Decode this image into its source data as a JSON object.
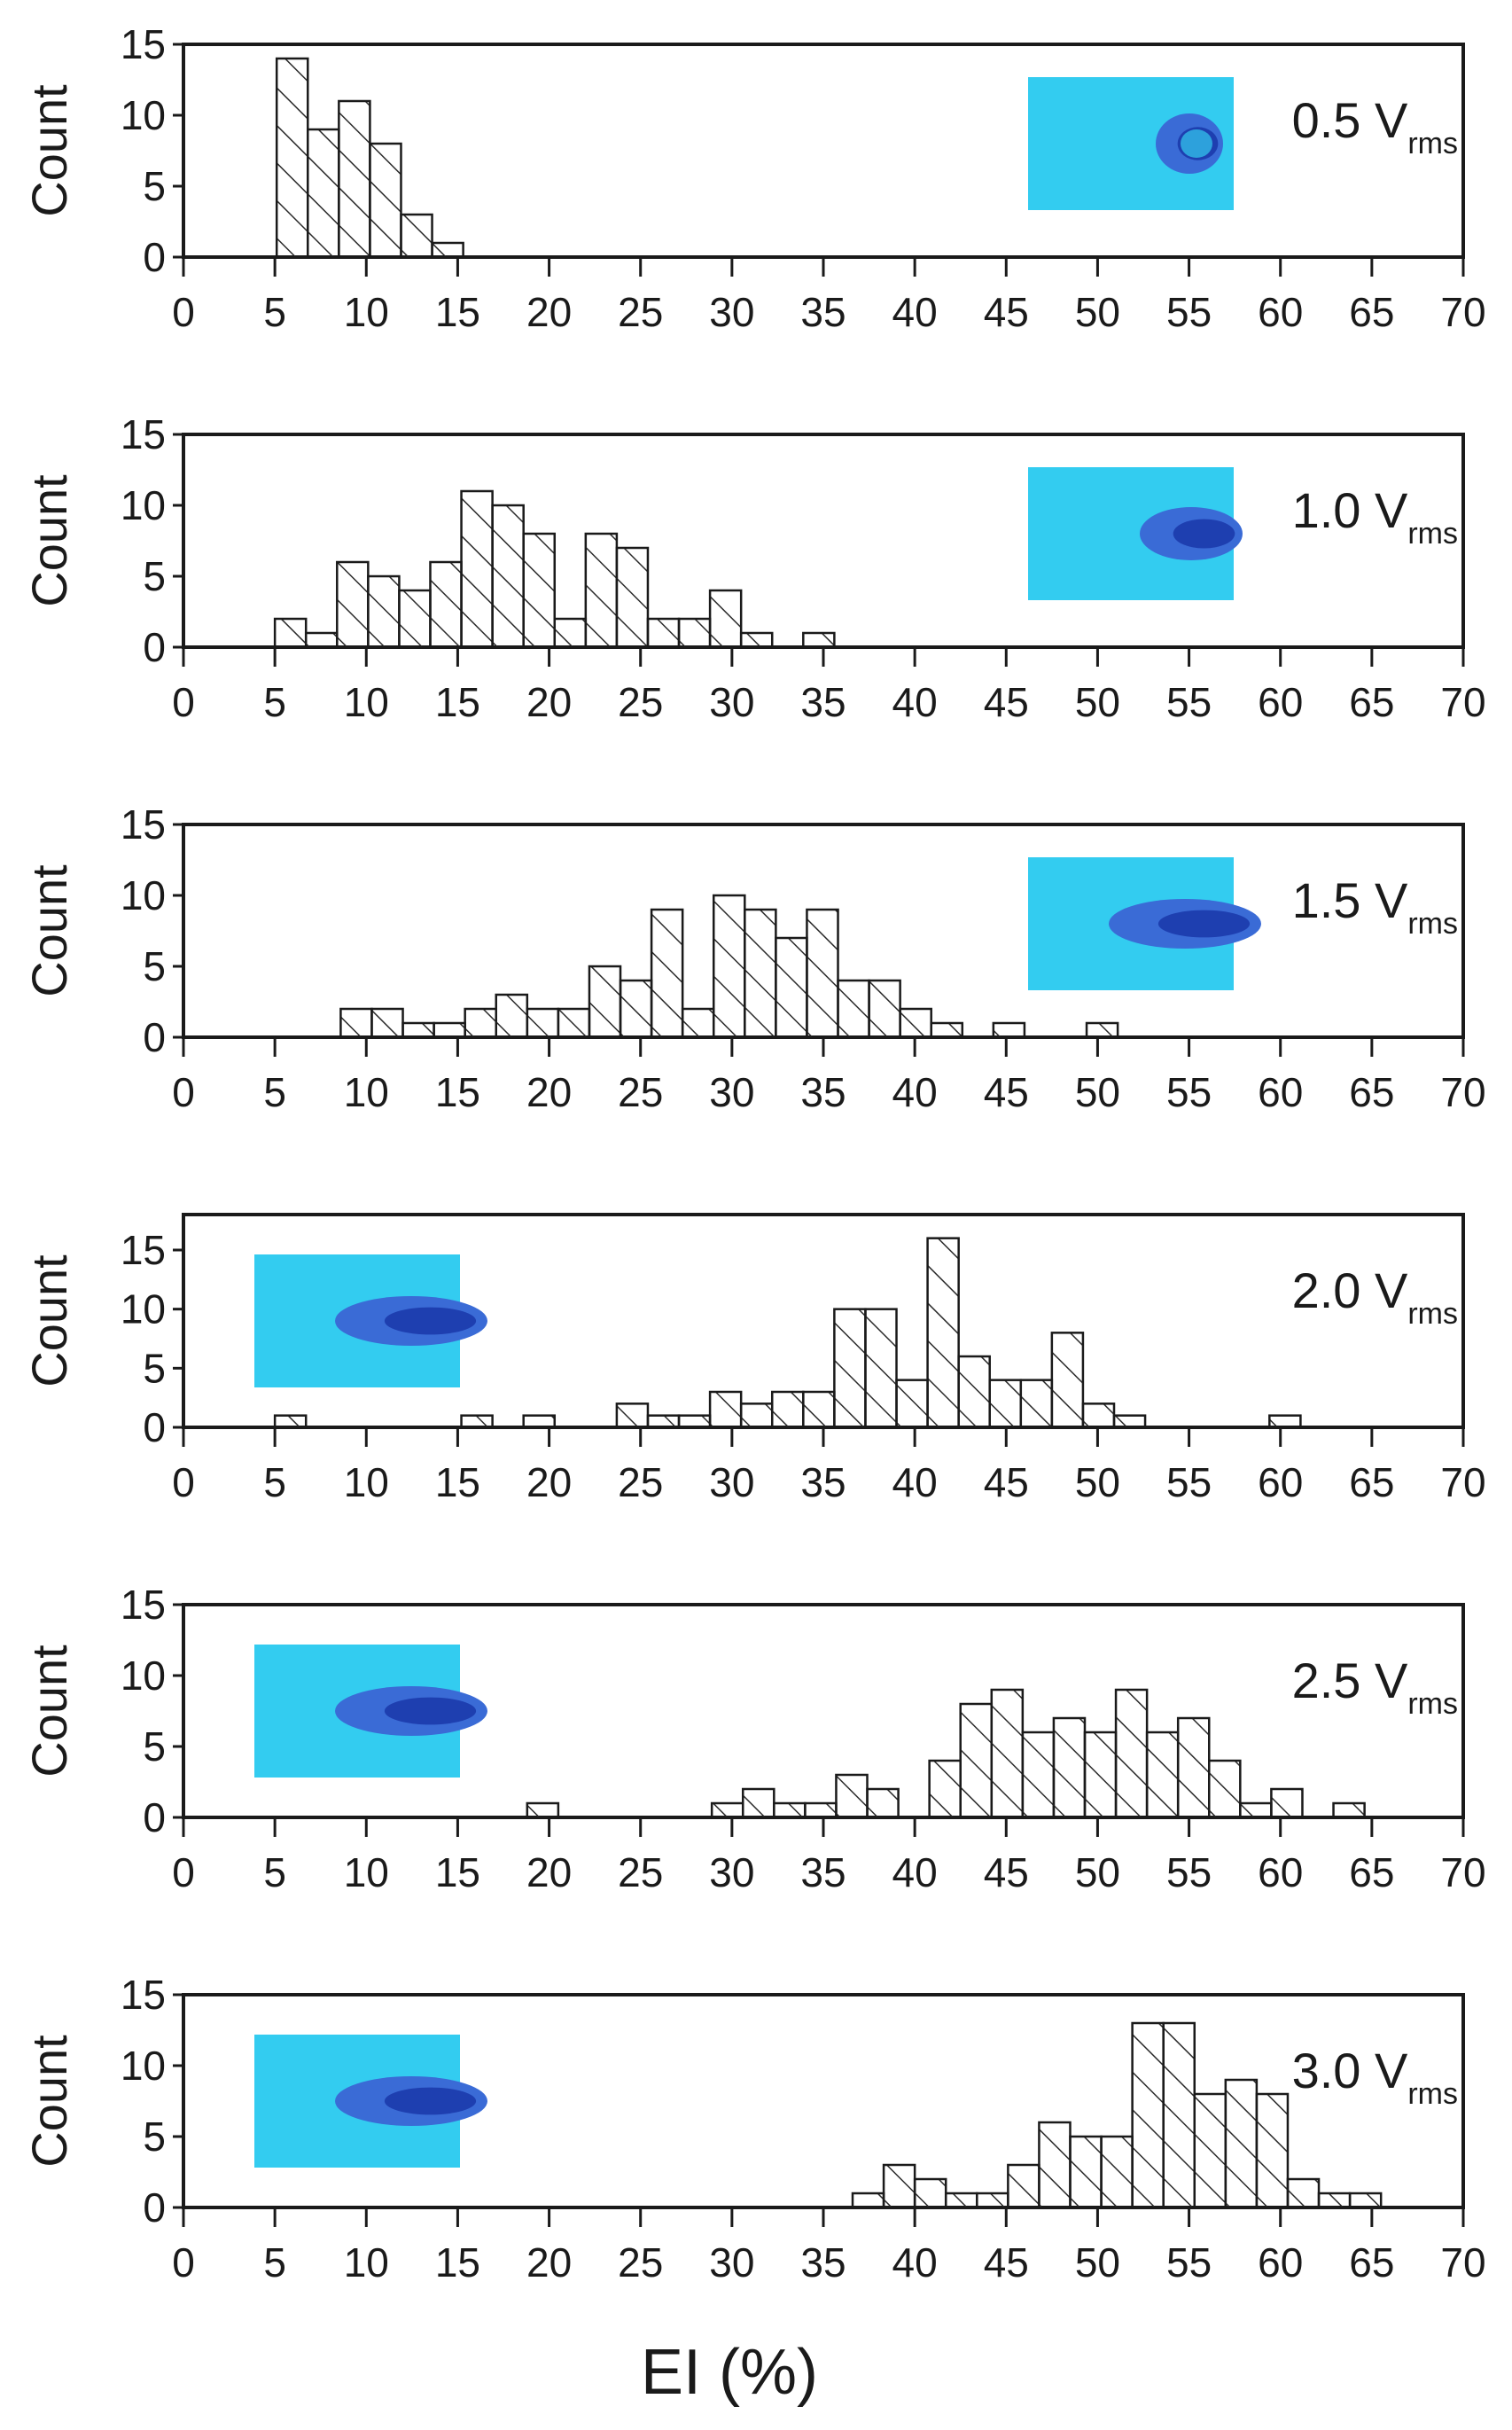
{
  "chart_data": {
    "type": "bar",
    "xlabel": "EI (%)",
    "xlim": [
      0,
      70
    ],
    "x_ticks": [
      "0",
      "5",
      "10",
      "15",
      "20",
      "25",
      "30",
      "35",
      "40",
      "45",
      "50",
      "55",
      "60",
      "65",
      "70"
    ],
    "bin_width": 1.7,
    "colors": {
      "fill": "#ffffff",
      "stroke": "#1a1a1a",
      "hatch": "#2a2a2a",
      "inset_bg": "#33ccf0",
      "inset_jet_outer": "#3a6bd6",
      "inset_jet_inner": "#1e3fb0"
    },
    "panels": [
      {
        "label_main": "0.5 V",
        "label_sub": "rms",
        "ylabel": "Count",
        "ylim": [
          0,
          15
        ],
        "y_ticks": [
          "0",
          "5",
          "10",
          "15"
        ],
        "inset": {
          "side": "right",
          "jet": "short"
        },
        "bins": [
          {
            "x": 5.1,
            "count": 14
          },
          {
            "x": 6.8,
            "count": 9
          },
          {
            "x": 8.5,
            "count": 11
          },
          {
            "x": 10.2,
            "count": 8
          },
          {
            "x": 11.9,
            "count": 3
          },
          {
            "x": 13.6,
            "count": 1
          }
        ]
      },
      {
        "label_main": "1.0 V",
        "label_sub": "rms",
        "ylabel": "Count",
        "ylim": [
          0,
          15
        ],
        "y_ticks": [
          "0",
          "5",
          "10",
          "15"
        ],
        "inset": {
          "side": "right",
          "jet": "medium"
        },
        "bins": [
          {
            "x": 5.0,
            "count": 2
          },
          {
            "x": 6.7,
            "count": 1
          },
          {
            "x": 8.4,
            "count": 6
          },
          {
            "x": 10.1,
            "count": 5
          },
          {
            "x": 11.8,
            "count": 4
          },
          {
            "x": 13.5,
            "count": 6
          },
          {
            "x": 15.2,
            "count": 11
          },
          {
            "x": 16.9,
            "count": 10
          },
          {
            "x": 18.6,
            "count": 8
          },
          {
            "x": 20.3,
            "count": 2
          },
          {
            "x": 22.0,
            "count": 8
          },
          {
            "x": 23.7,
            "count": 7
          },
          {
            "x": 25.4,
            "count": 2
          },
          {
            "x": 27.1,
            "count": 2
          },
          {
            "x": 28.8,
            "count": 4
          },
          {
            "x": 30.5,
            "count": 1
          },
          {
            "x": 33.9,
            "count": 1
          }
        ]
      },
      {
        "label_main": "1.5 V",
        "label_sub": "rms",
        "ylabel": "Count",
        "ylim": [
          0,
          15
        ],
        "y_ticks": [
          "0",
          "5",
          "10",
          "15"
        ],
        "inset": {
          "side": "right",
          "jet": "long"
        },
        "bins": [
          {
            "x": 8.6,
            "count": 2
          },
          {
            "x": 10.3,
            "count": 2
          },
          {
            "x": 12.0,
            "count": 1
          },
          {
            "x": 13.7,
            "count": 1
          },
          {
            "x": 15.4,
            "count": 2
          },
          {
            "x": 17.1,
            "count": 3
          },
          {
            "x": 18.8,
            "count": 2
          },
          {
            "x": 20.5,
            "count": 2
          },
          {
            "x": 22.2,
            "count": 5
          },
          {
            "x": 23.9,
            "count": 4
          },
          {
            "x": 25.6,
            "count": 9
          },
          {
            "x": 27.3,
            "count": 2
          },
          {
            "x": 29.0,
            "count": 10
          },
          {
            "x": 30.7,
            "count": 9
          },
          {
            "x": 32.4,
            "count": 7
          },
          {
            "x": 34.1,
            "count": 9
          },
          {
            "x": 35.8,
            "count": 4
          },
          {
            "x": 37.5,
            "count": 4
          },
          {
            "x": 39.2,
            "count": 2
          },
          {
            "x": 40.9,
            "count": 1
          },
          {
            "x": 44.3,
            "count": 1
          },
          {
            "x": 49.4,
            "count": 1
          }
        ]
      },
      {
        "label_main": "2.0 V",
        "label_sub": "rms",
        "ylabel": "Count",
        "ylim": [
          0,
          18
        ],
        "y_ticks": [
          "0",
          "5",
          "10",
          "15"
        ],
        "inset": {
          "side": "left",
          "jet": "long"
        },
        "bins": [
          {
            "x": 5.0,
            "count": 1
          },
          {
            "x": 15.2,
            "count": 1
          },
          {
            "x": 18.6,
            "count": 1
          },
          {
            "x": 23.7,
            "count": 2
          },
          {
            "x": 25.4,
            "count": 1
          },
          {
            "x": 27.1,
            "count": 1
          },
          {
            "x": 28.8,
            "count": 3
          },
          {
            "x": 30.5,
            "count": 2
          },
          {
            "x": 32.2,
            "count": 3
          },
          {
            "x": 33.9,
            "count": 3
          },
          {
            "x": 35.6,
            "count": 10
          },
          {
            "x": 37.3,
            "count": 10
          },
          {
            "x": 39.0,
            "count": 4
          },
          {
            "x": 40.7,
            "count": 16
          },
          {
            "x": 42.4,
            "count": 6
          },
          {
            "x": 44.1,
            "count": 4
          },
          {
            "x": 45.8,
            "count": 4
          },
          {
            "x": 47.5,
            "count": 8
          },
          {
            "x": 49.2,
            "count": 2
          },
          {
            "x": 50.9,
            "count": 1
          },
          {
            "x": 59.4,
            "count": 1
          }
        ]
      },
      {
        "label_main": "2.5 V",
        "label_sub": "rms",
        "ylabel": "Count",
        "ylim": [
          0,
          15
        ],
        "y_ticks": [
          "0",
          "5",
          "10",
          "15"
        ],
        "inset": {
          "side": "left",
          "jet": "long"
        },
        "bins": [
          {
            "x": 18.8,
            "count": 1
          },
          {
            "x": 28.9,
            "count": 1
          },
          {
            "x": 30.6,
            "count": 2
          },
          {
            "x": 32.3,
            "count": 1
          },
          {
            "x": 34.0,
            "count": 1
          },
          {
            "x": 35.7,
            "count": 3
          },
          {
            "x": 37.4,
            "count": 2
          },
          {
            "x": 40.8,
            "count": 4
          },
          {
            "x": 42.5,
            "count": 8
          },
          {
            "x": 44.2,
            "count": 9
          },
          {
            "x": 45.9,
            "count": 6
          },
          {
            "x": 47.6,
            "count": 7
          },
          {
            "x": 49.3,
            "count": 6
          },
          {
            "x": 51.0,
            "count": 9
          },
          {
            "x": 52.7,
            "count": 6
          },
          {
            "x": 54.4,
            "count": 7
          },
          {
            "x": 56.1,
            "count": 4
          },
          {
            "x": 57.8,
            "count": 1
          },
          {
            "x": 59.5,
            "count": 2
          },
          {
            "x": 62.9,
            "count": 1
          }
        ]
      },
      {
        "label_main": "3.0 V",
        "label_sub": "rms",
        "ylabel": "Count",
        "ylim": [
          0,
          15
        ],
        "y_ticks": [
          "0",
          "5",
          "10",
          "15"
        ],
        "inset": {
          "side": "left",
          "jet": "long"
        },
        "bins": [
          {
            "x": 36.6,
            "count": 1
          },
          {
            "x": 38.3,
            "count": 3
          },
          {
            "x": 40.0,
            "count": 2
          },
          {
            "x": 41.7,
            "count": 1
          },
          {
            "x": 43.4,
            "count": 1
          },
          {
            "x": 45.1,
            "count": 3
          },
          {
            "x": 46.8,
            "count": 6
          },
          {
            "x": 48.5,
            "count": 5
          },
          {
            "x": 50.2,
            "count": 5
          },
          {
            "x": 51.9,
            "count": 13
          },
          {
            "x": 53.6,
            "count": 13
          },
          {
            "x": 55.3,
            "count": 8
          },
          {
            "x": 57.0,
            "count": 9
          },
          {
            "x": 58.7,
            "count": 8
          },
          {
            "x": 60.4,
            "count": 2
          },
          {
            "x": 62.1,
            "count": 1
          },
          {
            "x": 63.8,
            "count": 1
          }
        ]
      }
    ]
  }
}
